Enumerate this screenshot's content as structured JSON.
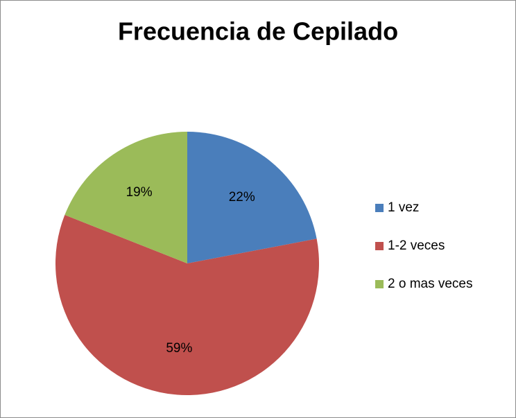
{
  "chart_data": {
    "type": "pie",
    "title": "Frecuencia de Cepilado",
    "categories": [
      "1 vez",
      "1-2 veces",
      "2  o mas veces"
    ],
    "values": [
      22,
      59,
      19
    ],
    "value_labels": [
      "22%",
      "59%",
      "19%"
    ],
    "colors": [
      "#4a7ebb",
      "#c0504d",
      "#9bbb59"
    ],
    "legend": "right"
  }
}
